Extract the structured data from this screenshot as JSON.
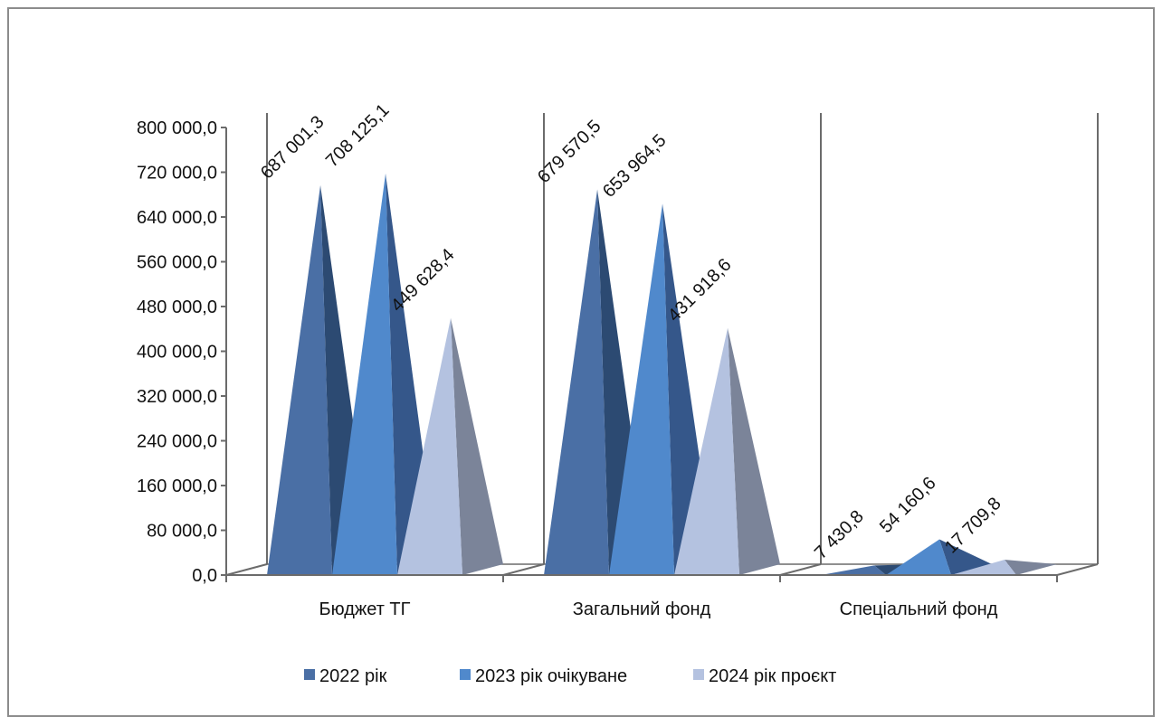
{
  "chart_data": {
    "type": "bar",
    "shape": "3d-pyramid",
    "title": "",
    "xlabel": "",
    "ylabel": "",
    "categories": [
      "Бюджет ТГ",
      "Загальний фонд",
      "Спеціальний фонд"
    ],
    "ylim": [
      0,
      800000
    ],
    "y_ticks": [
      {
        "value": 0,
        "label": "0,0"
      },
      {
        "value": 80000,
        "label": "80 000,0"
      },
      {
        "value": 160000,
        "label": "160 000,0"
      },
      {
        "value": 240000,
        "label": "240 000,0"
      },
      {
        "value": 320000,
        "label": "320 000,0"
      },
      {
        "value": 400000,
        "label": "400 000,0"
      },
      {
        "value": 480000,
        "label": "480 000,0"
      },
      {
        "value": 560000,
        "label": "560 000,0"
      },
      {
        "value": 640000,
        "label": "640 000,0"
      },
      {
        "value": 720000,
        "label": "720 000,0"
      },
      {
        "value": 800000,
        "label": "800 000,0"
      }
    ],
    "series": [
      {
        "name": "2022 рік",
        "color": "#4a6fa5",
        "shade": "#2c4a72",
        "values": [
          687001.3,
          679570.5,
          7430.8
        ],
        "labels": [
          "687 001,3",
          "679 570,5",
          "7 430,8"
        ]
      },
      {
        "name": "2023 рік очікуване",
        "color": "#5089cc",
        "shade": "#35578a",
        "values": [
          708125.1,
          653964.5,
          54160.6
        ],
        "labels": [
          "708 125,1",
          "653 964,5",
          "54 160,6"
        ]
      },
      {
        "name": "2024 рік проєкт",
        "color": "#b4c2e0",
        "shade": "#7b8499",
        "values": [
          449628.4,
          431918.6,
          17709.8
        ],
        "labels": [
          "449 628,4",
          "431 918,6",
          "17 709,8"
        ]
      }
    ],
    "grid": false,
    "legend": "bottom"
  }
}
